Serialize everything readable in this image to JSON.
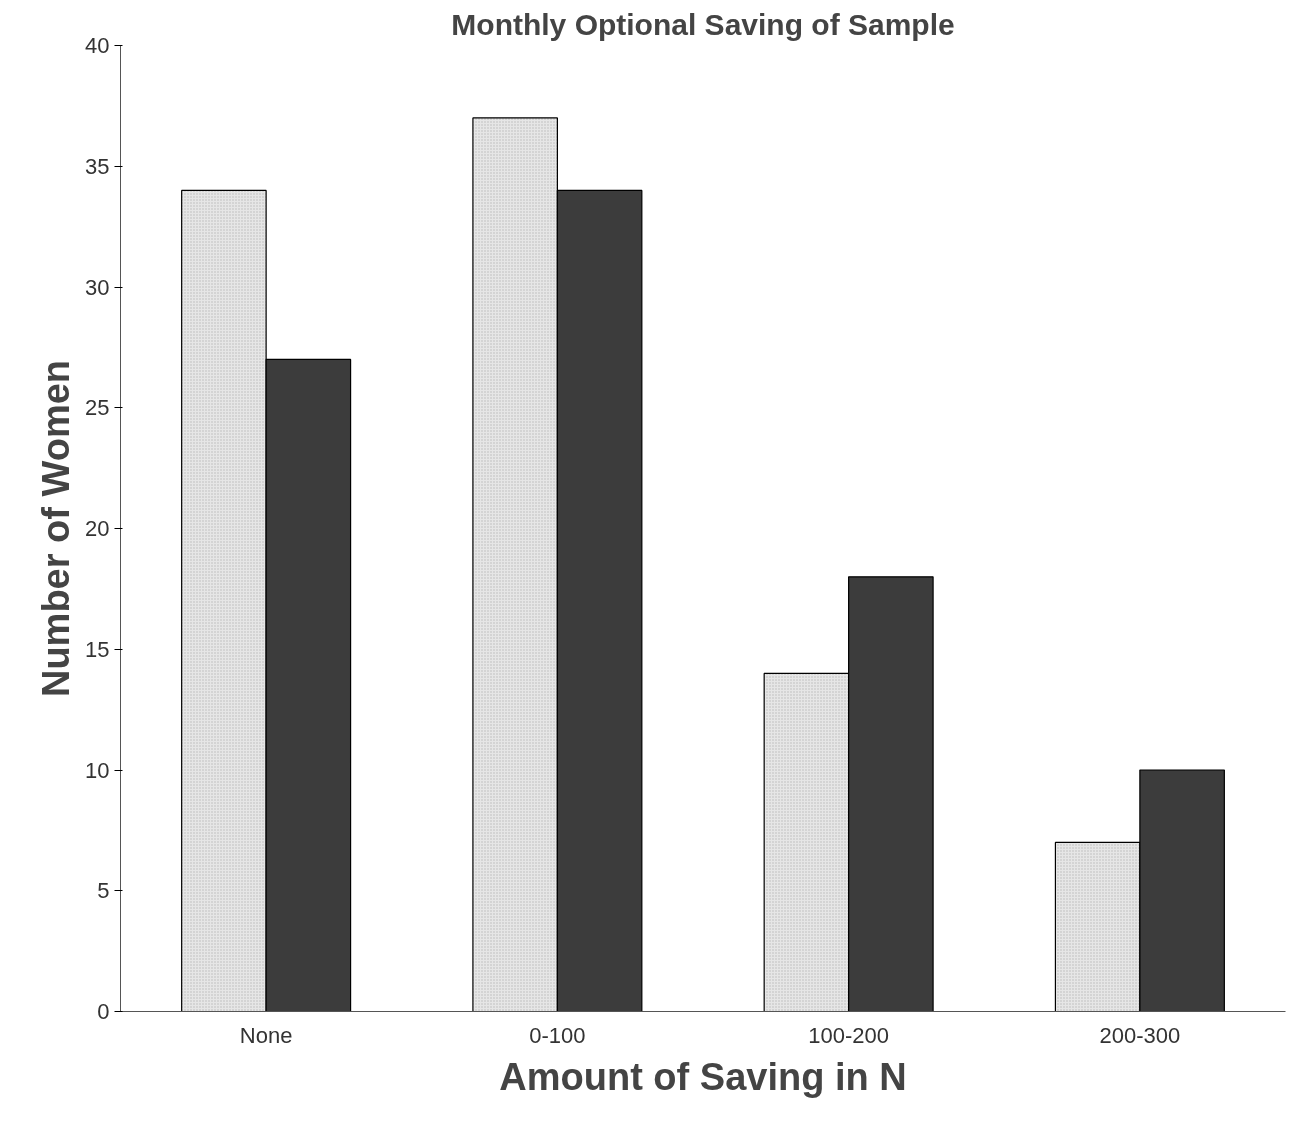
{
  "chart_data": {
    "type": "bar",
    "title": "Monthly Optional Saving of Sample",
    "xlabel": "Amount of Saving in N",
    "ylabel": "Number of Women",
    "categories": [
      "None",
      "0-100",
      "100-200",
      "200-300"
    ],
    "series": [
      {
        "color": "#e6e6e6",
        "values": [
          34,
          37,
          14,
          7
        ]
      },
      {
        "color": "#3c3c3c",
        "values": [
          27,
          34,
          18,
          10
        ]
      }
    ],
    "ylim": [
      0,
      40
    ],
    "yticks": [
      0,
      5,
      10,
      15,
      20,
      25,
      30,
      35,
      40
    ],
    "grid": false
  }
}
